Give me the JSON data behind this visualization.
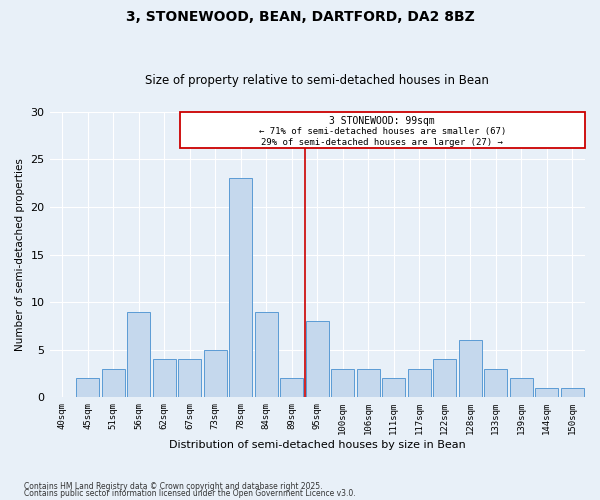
{
  "title1": "3, STONEWOOD, BEAN, DARTFORD, DA2 8BZ",
  "title2": "Size of property relative to semi-detached houses in Bean",
  "xlabel": "Distribution of semi-detached houses by size in Bean",
  "ylabel": "Number of semi-detached properties",
  "categories": [
    "40sqm",
    "45sqm",
    "51sqm",
    "56sqm",
    "62sqm",
    "67sqm",
    "73sqm",
    "78sqm",
    "84sqm",
    "89sqm",
    "95sqm",
    "100sqm",
    "106sqm",
    "111sqm",
    "117sqm",
    "122sqm",
    "128sqm",
    "133sqm",
    "139sqm",
    "144sqm",
    "150sqm"
  ],
  "values": [
    0,
    2,
    3,
    9,
    4,
    4,
    5,
    23,
    9,
    2,
    8,
    3,
    3,
    2,
    3,
    4,
    6,
    3,
    2,
    1,
    1
  ],
  "bar_color": "#c5d8ed",
  "bar_edge_color": "#5b9bd5",
  "background_color": "#e8f0f8",
  "grid_color": "#ffffff",
  "marker_label": "3 STONEWOOD: 99sqm",
  "marker_line1": "← 71% of semi-detached houses are smaller (67)",
  "marker_line2": "29% of semi-detached houses are larger (27) →",
  "annotation_box_color": "#cc0000",
  "vline_x": 9.5,
  "ylim": [
    0,
    30
  ],
  "yticks": [
    0,
    5,
    10,
    15,
    20,
    25,
    30
  ],
  "footer1": "Contains HM Land Registry data © Crown copyright and database right 2025.",
  "footer2": "Contains public sector information licensed under the Open Government Licence v3.0."
}
